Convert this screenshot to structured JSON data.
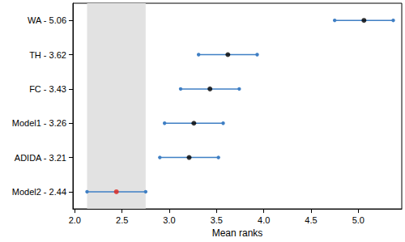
{
  "chart_data": {
    "type": "interval",
    "categories": [
      "WA - 5.06",
      "TH - 3.62",
      "FC - 3.43",
      "Model1 - 3.26",
      "ADIDA - 3.21",
      "Model2 - 2.44"
    ],
    "values": [
      5.06,
      3.62,
      3.43,
      3.26,
      3.21,
      2.44
    ],
    "lower": [
      4.75,
      3.31,
      3.12,
      2.95,
      2.9,
      2.13
    ],
    "upper": [
      5.37,
      3.93,
      3.74,
      3.57,
      3.52,
      2.75
    ],
    "colors": [
      "#000000",
      "#000000",
      "#000000",
      "#000000",
      "#000000",
      "#e0241b"
    ],
    "color": "#3f7fc4",
    "highlight_band": [
      2.13,
      2.75
    ],
    "x_label": "Mean ranks",
    "xlim": [
      1.98,
      5.46
    ],
    "xticks": [
      {
        "value": 2,
        "label": "2.0"
      },
      2.5,
      {
        "value": 3,
        "label": "3.0"
      },
      3.5,
      {
        "value": 4,
        "label": "4.0"
      },
      4.5,
      {
        "value": 5,
        "label": "5.0"
      }
    ],
    "grid": false
  }
}
